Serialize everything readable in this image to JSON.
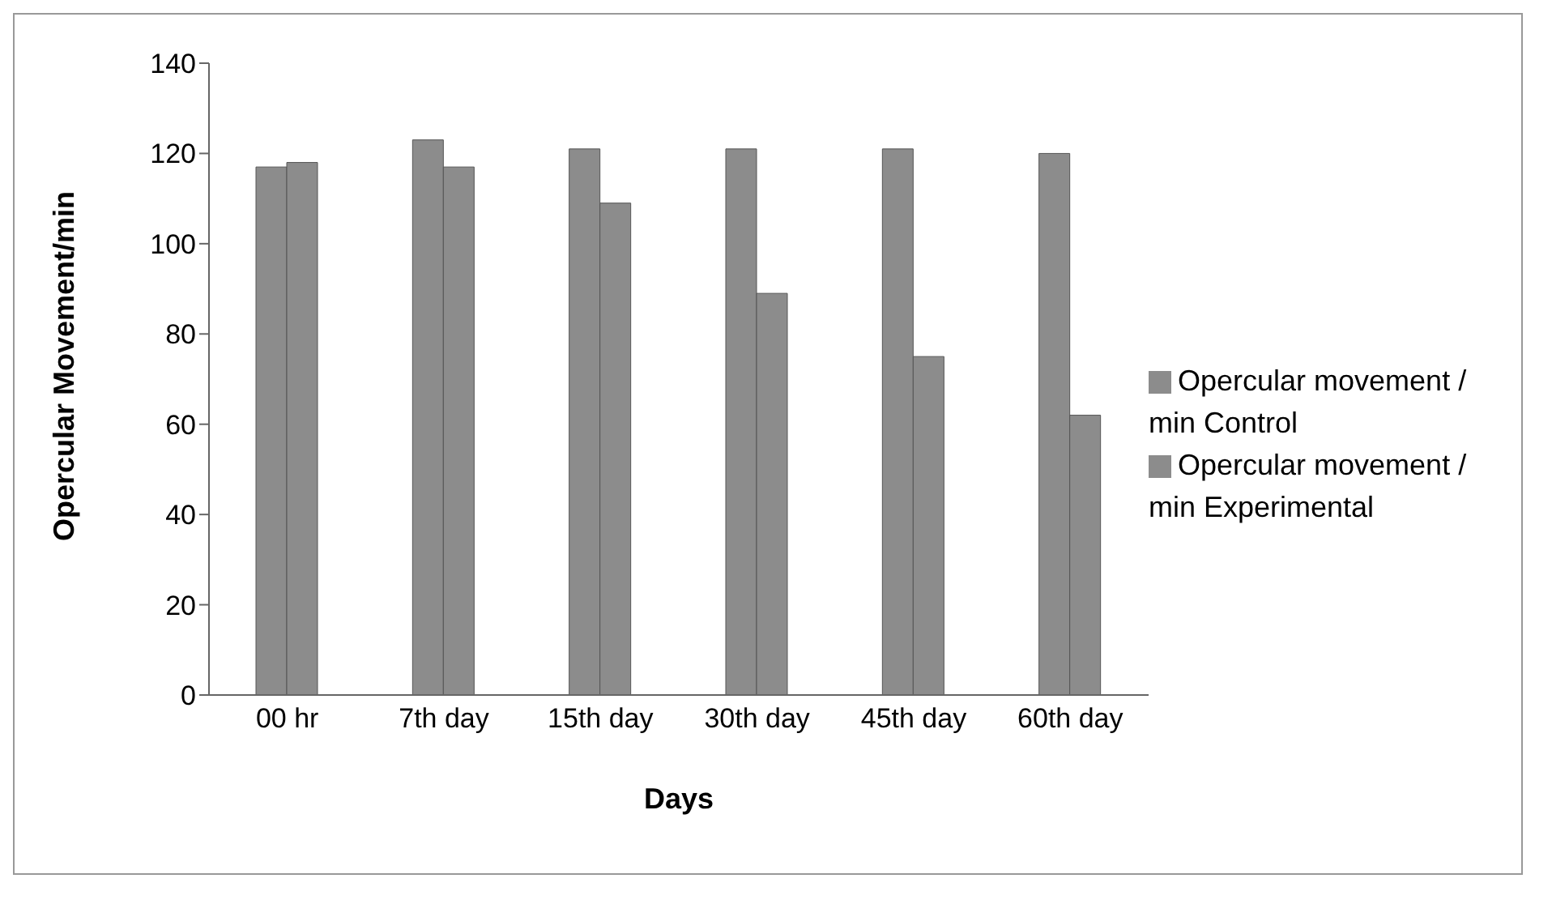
{
  "chart_data": {
    "type": "bar",
    "xlabel": "Days",
    "ylabel": "Opercular Movement/min",
    "categories": [
      "00 hr",
      "7th day",
      "15th day",
      "30th day",
      "45th day",
      "60th day"
    ],
    "series": [
      {
        "name": "Opercular movement / min Control",
        "color": "#8c8c8c",
        "values": [
          117,
          123,
          121,
          121,
          121,
          120
        ]
      },
      {
        "name": "Opercular movement / min Experimental",
        "color": "#8c8c8c",
        "values": [
          118,
          117,
          109,
          89,
          75,
          62
        ]
      }
    ],
    "ylim": [
      0,
      140
    ],
    "yticks": [
      0,
      20,
      40,
      60,
      80,
      100,
      120,
      140
    ],
    "grid": false,
    "legend": "right"
  }
}
